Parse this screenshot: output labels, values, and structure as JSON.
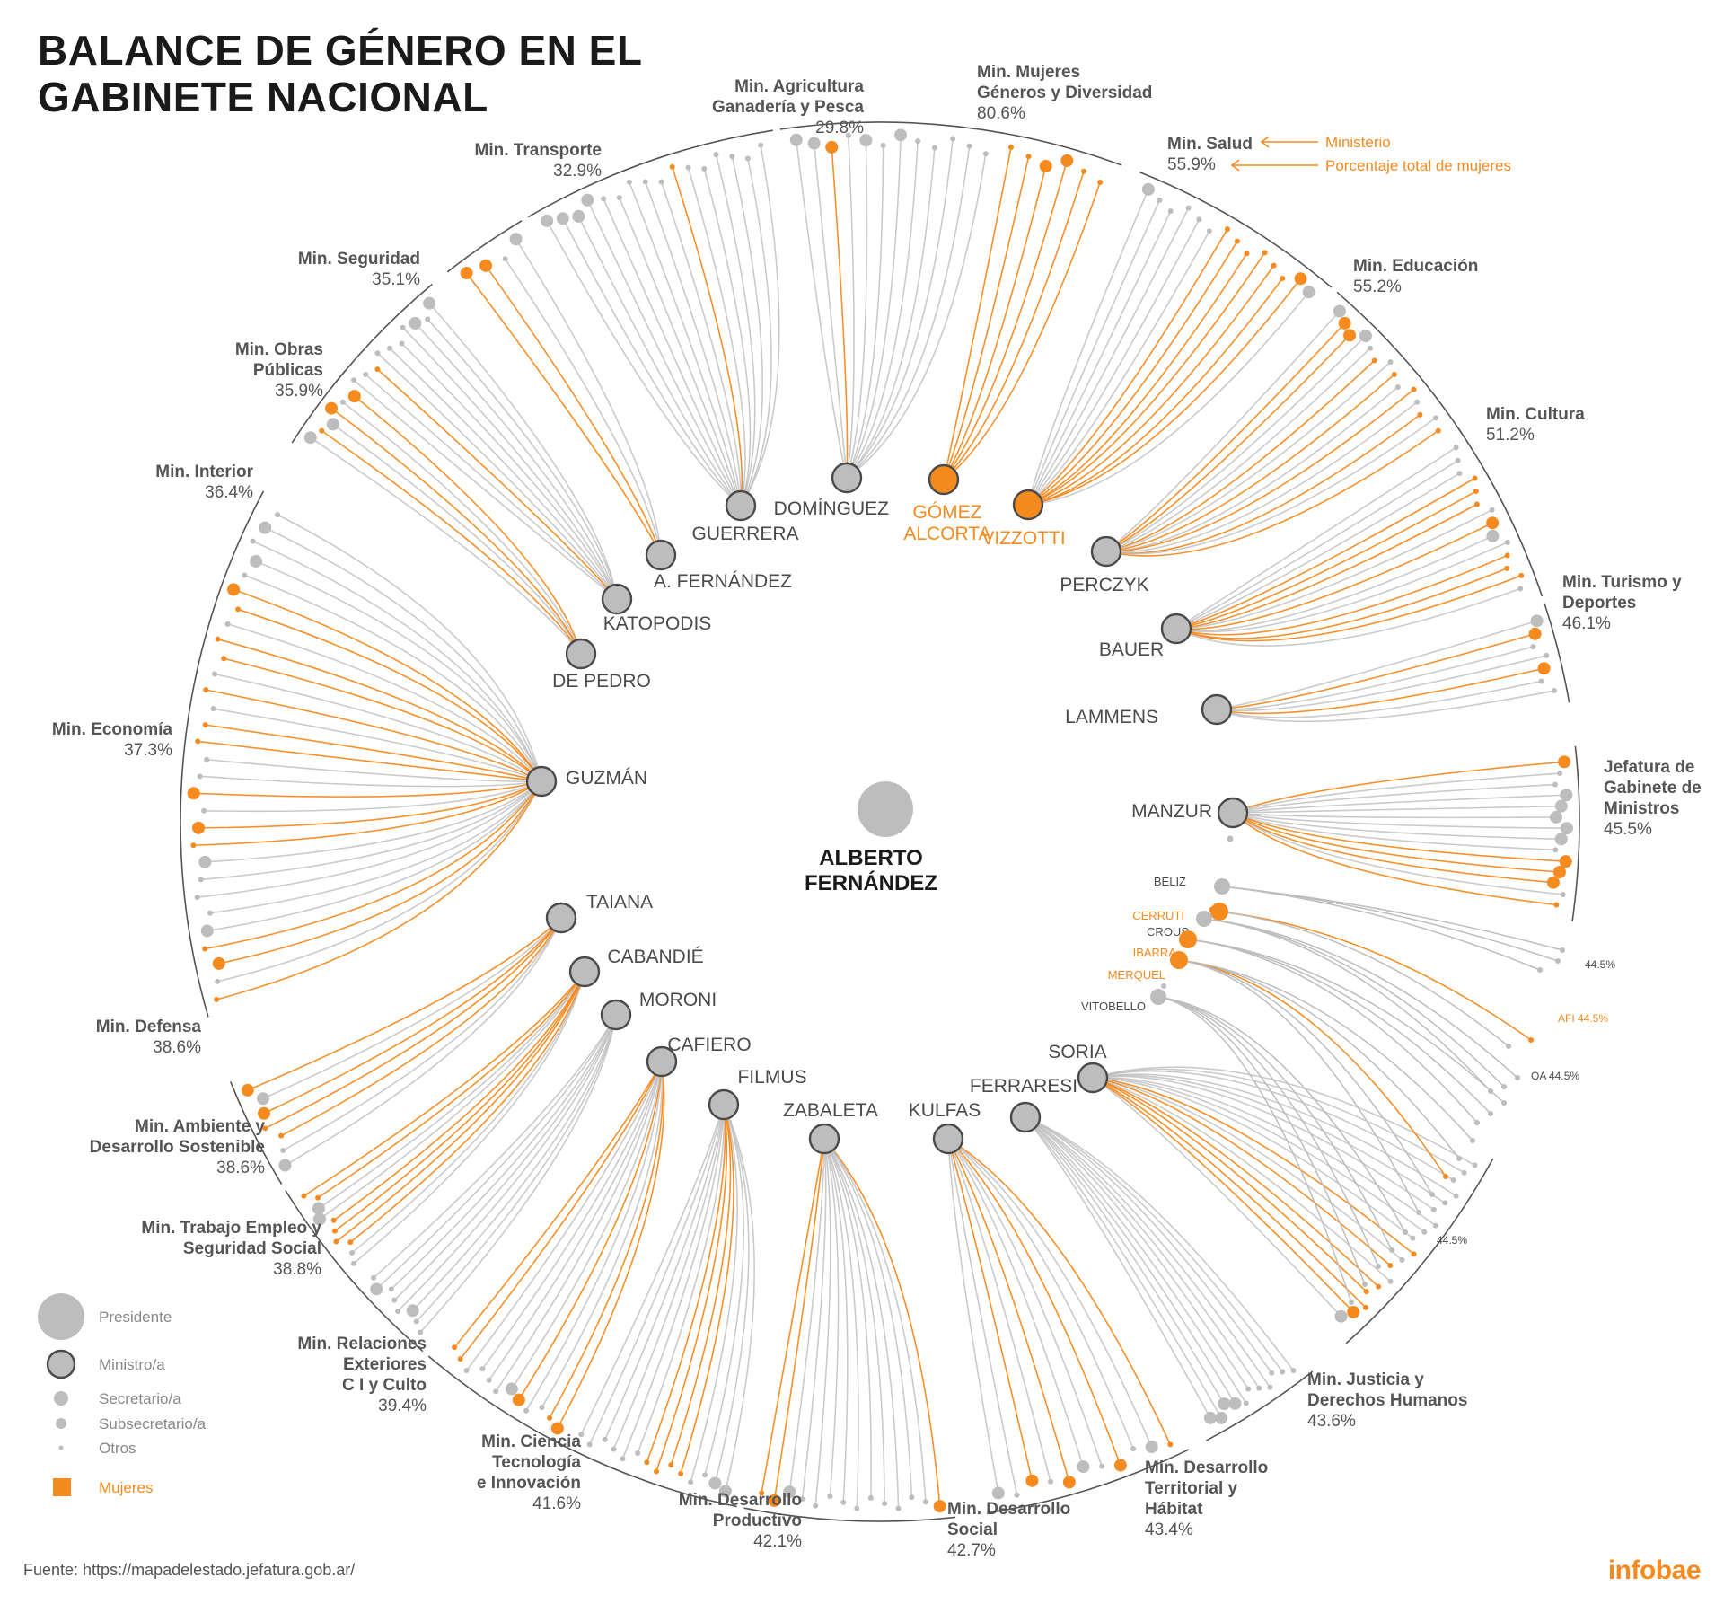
{
  "title": {
    "line1": "BALANCE DE GÉNERO EN EL",
    "line2": "GABINETE NACIONAL"
  },
  "colors": {
    "women": "#f58a1f",
    "men": "#bdbdbd",
    "arc": "#555555",
    "text": "#4a4a4a",
    "label": "#555555"
  },
  "president": {
    "name_line1": "ALBERTO",
    "name_line2": "FERNÁNDEZ"
  },
  "annotation": {
    "ministry": "Ministerio",
    "percent": "Porcentaje total de mujeres"
  },
  "legend": [
    {
      "label": "Presidente",
      "kind": "president"
    },
    {
      "label": "Ministro/a",
      "kind": "minister"
    },
    {
      "label": "Secretario/a",
      "kind": "secretary"
    },
    {
      "label": "Subsecretario/a",
      "kind": "undersecretary"
    },
    {
      "label": "Otros",
      "kind": "other"
    },
    {
      "label": "Mujeres",
      "kind": "women"
    }
  ],
  "source": "Fuente: https://mapadelestado.jefatura.gob.ar/",
  "brand": "infobae",
  "ministries": [
    {
      "id": "agricultura",
      "name": [
        "Min. Agricultura",
        "Ganadería y Pesca"
      ],
      "percent": "29.8%",
      "minister": "DOMÍNGUEZ",
      "minister_woman": false,
      "count": 12,
      "women_idx": [
        2
      ],
      "sec_idx": [
        0,
        1,
        2,
        4,
        6
      ]
    },
    {
      "id": "mujeres",
      "name": [
        "Min. Mujeres",
        "Géneros y Diversidad"
      ],
      "percent": "80.6%",
      "minister": "GÓMEZ ALCORTA",
      "minister_woman": true,
      "count": 6,
      "women_idx": [
        0,
        1,
        2,
        3,
        4,
        5
      ],
      "sec_idx": [
        2,
        3
      ]
    },
    {
      "id": "salud",
      "name": [
        "Min. Salud"
      ],
      "percent": "55.9%",
      "minister": "VIZZOTTI",
      "minister_woman": true,
      "count": 14,
      "women_idx": [
        6,
        7,
        8,
        9,
        10,
        11,
        12
      ],
      "sec_idx": [
        0,
        12,
        13
      ]
    },
    {
      "id": "educacion",
      "name": [
        "Min. Educación"
      ],
      "percent": "55.2%",
      "minister": "PERCZYK",
      "minister_woman": false,
      "count": 14,
      "women_idx": [
        1,
        2,
        5,
        7,
        9,
        11,
        13
      ],
      "sec_idx": [
        0,
        1,
        2,
        3
      ]
    },
    {
      "id": "cultura",
      "name": [
        "Min. Cultura"
      ],
      "percent": "51.2%",
      "minister": "BAUER",
      "minister_woman": false,
      "count": 14,
      "women_idx": [
        3,
        4,
        5,
        7,
        10,
        11,
        12
      ],
      "sec_idx": [
        7,
        8
      ]
    },
    {
      "id": "turismo",
      "name": [
        "Min. Turismo y",
        "Deportes"
      ],
      "percent": "46.1%",
      "minister": "LAMMENS",
      "minister_woman": false,
      "count": 7,
      "women_idx": [
        1,
        4
      ],
      "sec_idx": [
        0,
        1,
        4
      ]
    },
    {
      "id": "jefatura",
      "name": [
        "Jefatura de",
        "Gabinete de",
        "Ministros"
      ],
      "percent": "45.5%",
      "minister": "MANZUR",
      "minister_woman": false,
      "count": 14,
      "women_idx": [
        0,
        9,
        10,
        11,
        13
      ],
      "sec_idx": [
        0,
        3,
        4,
        5,
        6,
        7,
        9,
        10,
        11
      ]
    },
    {
      "id": "justicia",
      "name": [
        "Min. Justicia y",
        "Derechos Humanos"
      ],
      "percent": "43.6%",
      "minister": "SORIA",
      "minister_woman": false,
      "count": 18,
      "women_idx": [
        9,
        11,
        13,
        14,
        15,
        16
      ],
      "sec_idx": [
        16,
        17
      ]
    },
    {
      "id": "territorial",
      "name": [
        "Min. Desarrollo",
        "Territorial y",
        "Hábitat"
      ],
      "percent": "43.4%",
      "minister": "FERRARESI",
      "minister_woman": false,
      "count": 11,
      "women_idx": [],
      "sec_idx": [
        7,
        8,
        9,
        10
      ]
    },
    {
      "id": "social",
      "name": [
        "Min. Desarrollo",
        "Social"
      ],
      "percent": "42.7%",
      "minister": "KULFAS",
      "minister_woman": false,
      "count": 11,
      "women_idx": [
        0,
        3,
        6,
        8
      ],
      "sec_idx": [
        1,
        3,
        5,
        6,
        8,
        10
      ]
    },
    {
      "id": "productivo",
      "name": [
        "Min. Desarrollo",
        "Productivo"
      ],
      "percent": "42.1%",
      "minister": "ZABALETA",
      "minister_woman": false,
      "count": 14,
      "women_idx": [
        0,
        12,
        13
      ],
      "sec_idx": [
        0,
        11,
        12
      ]
    },
    {
      "id": "ciencia",
      "name": [
        "Min. Ciencia",
        "Tecnología",
        "e Innovación"
      ],
      "percent": "41.6%",
      "minister": "FILMUS",
      "minister_woman": false,
      "count": 14,
      "women_idx": [
        4,
        5,
        6,
        7
      ],
      "sec_idx": [
        0,
        1
      ]
    },
    {
      "id": "exteriores",
      "name": [
        "Min. Relaciones",
        "Exteriores",
        "C I y Culto"
      ],
      "percent": "39.4%",
      "minister": "CAFIERO",
      "minister_woman": false,
      "count": 12,
      "women_idx": [
        0,
        1,
        4,
        10,
        11
      ],
      "sec_idx": [
        0,
        4,
        5
      ]
    },
    {
      "id": "trabajo",
      "name": [
        "Min. Trabajo Empleo y",
        "Seguridad Social"
      ],
      "percent": "38.8%",
      "minister": "MORONI",
      "minister_woman": false,
      "count": 8,
      "women_idx": [],
      "sec_idx": [
        2,
        6
      ]
    },
    {
      "id": "ambiente",
      "name": [
        "Min. Ambiente y",
        "Desarrollo Sostenible"
      ],
      "percent": "38.6%",
      "minister": "CABANDIÉ",
      "minister_woman": false,
      "count": 10,
      "women_idx": [
        2,
        3,
        4,
        5,
        8,
        9
      ],
      "sec_idx": [
        6,
        7
      ]
    },
    {
      "id": "defensa",
      "name": [
        "Min. Defensa"
      ],
      "percent": "38.6%",
      "minister": "TAIANA",
      "minister_woman": false,
      "count": 7,
      "women_idx": [
        2,
        3,
        4,
        6
      ],
      "sec_idx": [
        0,
        4,
        5,
        6
      ]
    },
    {
      "id": "economia",
      "name": [
        "Min. Economía"
      ],
      "percent": "37.3%",
      "minister": "GUZMÁN",
      "minister_woman": false,
      "count": 30,
      "women_idx": [
        0,
        2,
        3,
        9,
        10,
        12,
        15,
        16,
        18,
        20,
        21,
        23,
        24
      ],
      "sec_idx": [
        2,
        4,
        8,
        10,
        12,
        24,
        26,
        28
      ]
    },
    {
      "id": "interior",
      "name": [
        "Min. Interior"
      ],
      "percent": "36.4%",
      "minister": "DE PEDRO",
      "minister_woman": false,
      "count": 6,
      "women_idx": [
        1,
        3,
        5
      ],
      "sec_idx": [
        0,
        2,
        3,
        5
      ]
    },
    {
      "id": "obras",
      "name": [
        "Min. Obras",
        "Públicas"
      ],
      "percent": "35.9%",
      "minister": "KATOPODIS",
      "minister_woman": false,
      "count": 10,
      "women_idx": [
        2
      ],
      "sec_idx": [
        7,
        9
      ]
    },
    {
      "id": "seguridad",
      "name": [
        "Min. Seguridad"
      ],
      "percent": "35.1%",
      "minister": "A. FERNÁNDEZ",
      "minister_woman": false,
      "count": 4,
      "women_idx": [
        0,
        1
      ],
      "sec_idx": [
        0,
        1,
        3
      ]
    },
    {
      "id": "transporte",
      "name": [
        "Min. Transporte"
      ],
      "percent": "32.9%",
      "minister": "GUERRERA",
      "minister_woman": false,
      "count": 16,
      "women_idx": [
        9
      ],
      "sec_idx": [
        0,
        1,
        2,
        3
      ]
    }
  ],
  "organisms": {
    "afi_label": "AFI 44.5%",
    "oa_label": "OA 44.5%",
    "beliz_label": "44.5%",
    "vitobello_label": "44.5%",
    "names": [
      {
        "name": "BELIZ",
        "woman": false
      },
      {
        "name": "CERRUTI",
        "woman": true
      },
      {
        "name": "CROUS",
        "woman": false
      },
      {
        "name": "IBARRA",
        "woman": true
      },
      {
        "name": "MERQUEL",
        "woman": true
      },
      {
        "name": "VITOBELLO",
        "woman": false
      }
    ]
  }
}
